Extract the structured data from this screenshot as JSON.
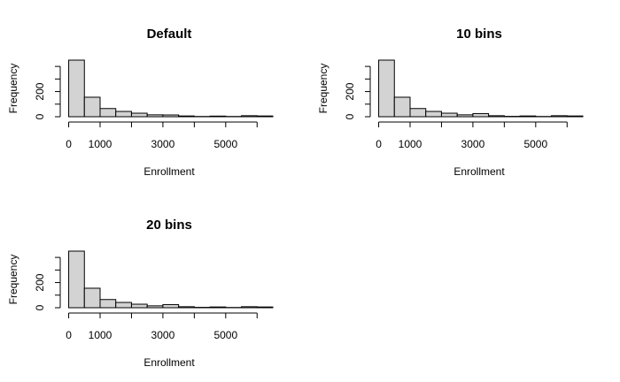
{
  "chart_data": [
    {
      "type": "bar",
      "title": "Default",
      "xlabel": "Enrollment",
      "ylabel": "Frequency",
      "xlim": [
        -100,
        6500
      ],
      "ylim": [
        0,
        450
      ],
      "x_ticks": [
        0,
        1000,
        3000,
        5000
      ],
      "x_tick_labels": [
        "0",
        "1000",
        "3000",
        "5000"
      ],
      "x_minor_ticks": [
        2000,
        4000,
        6000
      ],
      "y_ticks": [
        0,
        100,
        200,
        300,
        400
      ],
      "y_tick_labels": [
        "0",
        "200"
      ],
      "y_labeled_ticks": [
        0,
        200
      ],
      "bin_edges": [
        0,
        500,
        1000,
        1500,
        2000,
        2500,
        3000,
        3500,
        4000,
        4500,
        5000,
        5500,
        6000,
        6500
      ],
      "values": [
        450,
        155,
        65,
        42,
        28,
        15,
        14,
        6,
        2,
        5,
        2,
        8,
        6
      ],
      "bar_fill": "#d3d3d3"
    },
    {
      "type": "bar",
      "title": "10 bins",
      "xlabel": "Enrollment",
      "ylabel": "Frequency",
      "xlim": [
        -100,
        6500
      ],
      "ylim": [
        0,
        450
      ],
      "x_ticks": [
        0,
        1000,
        3000,
        5000
      ],
      "x_tick_labels": [
        "0",
        "1000",
        "3000",
        "5000"
      ],
      "x_minor_ticks": [
        2000,
        4000,
        6000
      ],
      "y_ticks": [
        0,
        100,
        200,
        300,
        400
      ],
      "y_tick_labels": [
        "0",
        "200"
      ],
      "y_labeled_ticks": [
        0,
        200
      ],
      "bin_edges": [
        0,
        500,
        1000,
        1500,
        2000,
        2500,
        3000,
        3500,
        4000,
        4500,
        5000,
        5500,
        6000,
        6500
      ],
      "values": [
        450,
        155,
        65,
        42,
        28,
        15,
        25,
        8,
        3,
        6,
        2,
        8,
        6
      ],
      "bar_fill": "#d3d3d3"
    },
    {
      "type": "bar",
      "title": "20 bins",
      "xlabel": "Enrollment",
      "ylabel": "Frequency",
      "xlim": [
        -100,
        6500
      ],
      "ylim": [
        0,
        450
      ],
      "x_ticks": [
        0,
        1000,
        3000,
        5000
      ],
      "x_tick_labels": [
        "0",
        "1000",
        "3000",
        "5000"
      ],
      "x_minor_ticks": [
        2000,
        4000,
        6000
      ],
      "y_ticks": [
        0,
        100,
        200,
        300,
        400
      ],
      "y_tick_labels": [
        "0",
        "200"
      ],
      "y_labeled_ticks": [
        0,
        200
      ],
      "bin_edges": [
        0,
        500,
        1000,
        1500,
        2000,
        2500,
        3000,
        3500,
        4000,
        4500,
        5000,
        5500,
        6000,
        6500
      ],
      "values": [
        450,
        155,
        65,
        42,
        28,
        15,
        25,
        8,
        3,
        6,
        2,
        8,
        6
      ],
      "bar_fill": "#d3d3d3"
    }
  ]
}
